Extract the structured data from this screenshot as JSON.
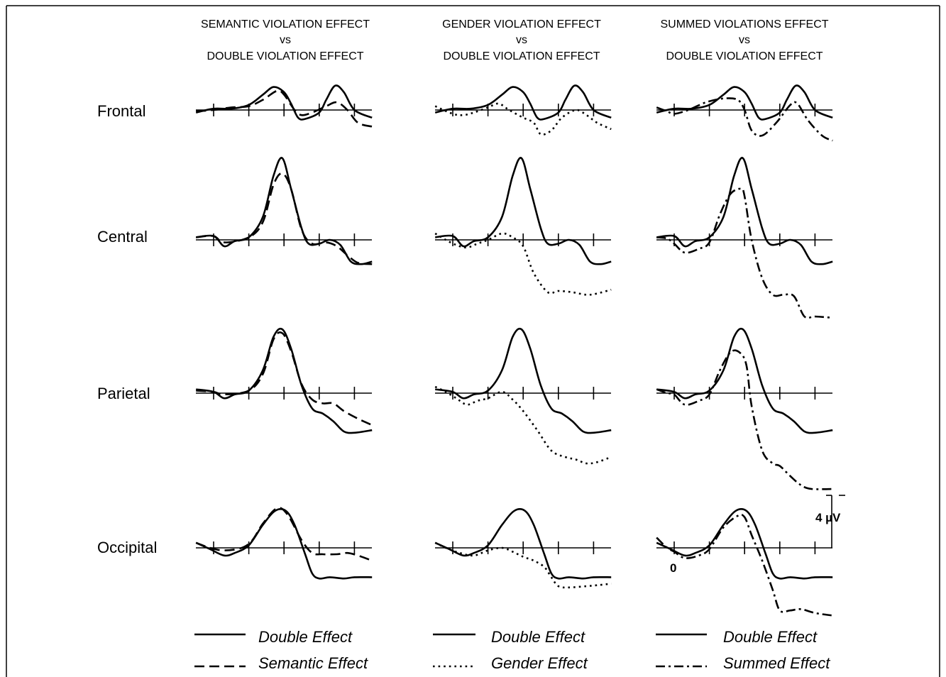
{
  "chart_data": {
    "type": "line",
    "columns": [
      {
        "header": [
          "SEMANTIC VIOLATION EFFECT",
          "vs",
          "DOUBLE VIOLATION EFFECT"
        ],
        "comparison": "semantic",
        "legend": [
          {
            "label": "Double Effect",
            "style": "solid"
          },
          {
            "label": "Semantic Effect",
            "style": "dashed"
          }
        ]
      },
      {
        "header": [
          "GENDER VIOLATION EFFECT",
          "vs",
          "DOUBLE VIOLATION EFFECT"
        ],
        "comparison": "gender",
        "legend": [
          {
            "label": "Double Effect",
            "style": "solid"
          },
          {
            "label": "Gender Effect",
            "style": "dotted"
          }
        ]
      },
      {
        "header": [
          "SUMMED VIOLATIONS EFFECT",
          "vs",
          "DOUBLE VIOLATION EFFECT"
        ],
        "comparison": "summed",
        "legend": [
          {
            "label": "Double Effect",
            "style": "solid"
          },
          {
            "label": "Summed Effect",
            "style": "dashdot"
          }
        ]
      }
    ],
    "rows": [
      "Frontal",
      "Central",
      "Parietal",
      "Occipital"
    ],
    "x_units": "ticks",
    "x_range": [
      -0.5,
      4.5
    ],
    "y_units": "µV (positive up)",
    "scale_bar": {
      "label": "4 µV",
      "value": 4
    },
    "zero_label": "0",
    "series": {
      "Frontal": {
        "double": [
          [
            -0.5,
            -0.2
          ],
          [
            0,
            0.1
          ],
          [
            0.5,
            0.1
          ],
          [
            1,
            0.4
          ],
          [
            1.4,
            1.2
          ],
          [
            1.7,
            1.8
          ],
          [
            2,
            1.4
          ],
          [
            2.2,
            0.5
          ],
          [
            2.4,
            -0.6
          ],
          [
            2.6,
            -0.7
          ],
          [
            3,
            -0.2
          ],
          [
            3.2,
            0.8
          ],
          [
            3.45,
            1.9
          ],
          [
            3.7,
            1.4
          ],
          [
            4,
            0.0
          ],
          [
            4.5,
            -0.6
          ]
        ],
        "semantic": [
          [
            -0.5,
            -0.1
          ],
          [
            0,
            0.0
          ],
          [
            0.5,
            0.2
          ],
          [
            1,
            0.3
          ],
          [
            1.4,
            0.8
          ],
          [
            1.8,
            1.5
          ],
          [
            2,
            1.2
          ],
          [
            2.3,
            0.0
          ],
          [
            2.5,
            -0.4
          ],
          [
            2.8,
            -0.2
          ],
          [
            3.2,
            0.3
          ],
          [
            3.5,
            0.6
          ],
          [
            3.8,
            0.0
          ],
          [
            4.1,
            -1.0
          ],
          [
            4.5,
            -1.3
          ]
        ],
        "gender": [
          [
            -0.5,
            0.3
          ],
          [
            0,
            -0.3
          ],
          [
            0.3,
            -0.4
          ],
          [
            0.6,
            -0.2
          ],
          [
            1,
            0.2
          ],
          [
            1.3,
            0.5
          ],
          [
            1.6,
            0.0
          ],
          [
            2,
            -0.6
          ],
          [
            2.3,
            -1.0
          ],
          [
            2.5,
            -1.9
          ],
          [
            2.8,
            -1.6
          ],
          [
            3.1,
            -0.6
          ],
          [
            3.5,
            0.0
          ],
          [
            3.8,
            -0.4
          ],
          [
            4.1,
            -1.0
          ],
          [
            4.5,
            -1.5
          ]
        ],
        "summed": [
          [
            -0.5,
            0.2
          ],
          [
            -0.2,
            -0.1
          ],
          [
            0,
            -0.3
          ],
          [
            0.4,
            0.0
          ],
          [
            0.9,
            0.6
          ],
          [
            1.4,
            0.9
          ],
          [
            1.8,
            0.8
          ],
          [
            2.0,
            0.0
          ],
          [
            2.2,
            -1.6
          ],
          [
            2.5,
            -2.0
          ],
          [
            2.9,
            -1.0
          ],
          [
            3.3,
            0.4
          ],
          [
            3.5,
            0.5
          ],
          [
            3.8,
            -0.8
          ],
          [
            4.2,
            -2.0
          ],
          [
            4.5,
            -2.4
          ]
        ]
      },
      "Central": {
        "double": [
          [
            -0.5,
            0.2
          ],
          [
            0,
            0.3
          ],
          [
            0.3,
            -0.5
          ],
          [
            0.6,
            -0.1
          ],
          [
            1,
            0.2
          ],
          [
            1.4,
            1.8
          ],
          [
            1.7,
            5.0
          ],
          [
            1.95,
            6.4
          ],
          [
            2.2,
            4.0
          ],
          [
            2.5,
            0.9
          ],
          [
            2.7,
            -0.3
          ],
          [
            3.0,
            -0.3
          ],
          [
            3.3,
            0.0
          ],
          [
            3.6,
            -0.4
          ],
          [
            3.9,
            -1.7
          ],
          [
            4.2,
            -1.9
          ],
          [
            4.5,
            -1.7
          ]
        ],
        "semantic": [
          [
            -0.5,
            0.2
          ],
          [
            0,
            0.3
          ],
          [
            0.3,
            -0.2
          ],
          [
            1,
            0.2
          ],
          [
            1.4,
            1.4
          ],
          [
            1.7,
            4.3
          ],
          [
            1.95,
            5.2
          ],
          [
            2.2,
            4.0
          ],
          [
            2.5,
            0.8
          ],
          [
            2.8,
            -0.3
          ],
          [
            3.2,
            -0.2
          ],
          [
            3.5,
            -0.5
          ],
          [
            3.8,
            -1.2
          ],
          [
            4.1,
            -1.8
          ],
          [
            4.5,
            -1.9
          ]
        ],
        "gender": [
          [
            -0.5,
            0.5
          ],
          [
            -0.2,
            0.0
          ],
          [
            0.1,
            -0.4
          ],
          [
            0.4,
            -0.6
          ],
          [
            0.7,
            -0.3
          ],
          [
            1.0,
            0.0
          ],
          [
            1.4,
            0.5
          ],
          [
            1.7,
            0.2
          ],
          [
            2.0,
            -0.5
          ],
          [
            2.3,
            -2.6
          ],
          [
            2.7,
            -4.1
          ],
          [
            3.0,
            -4.0
          ],
          [
            3.4,
            -4.1
          ],
          [
            3.8,
            -4.3
          ],
          [
            4.1,
            -4.2
          ],
          [
            4.5,
            -3.9
          ]
        ],
        "summed": [
          [
            -0.5,
            0.2
          ],
          [
            -0.2,
            0.1
          ],
          [
            0.0,
            -0.3
          ],
          [
            0.3,
            -1.0
          ],
          [
            0.7,
            -0.7
          ],
          [
            1.0,
            -0.2
          ],
          [
            1.3,
            2.0
          ],
          [
            1.6,
            3.6
          ],
          [
            1.9,
            4.0
          ],
          [
            2.0,
            3.4
          ],
          [
            2.2,
            0.0
          ],
          [
            2.5,
            -3.0
          ],
          [
            2.8,
            -4.3
          ],
          [
            3.1,
            -4.3
          ],
          [
            3.4,
            -4.4
          ],
          [
            3.7,
            -6.0
          ],
          [
            4.0,
            -6.0
          ],
          [
            4.5,
            -6.1
          ]
        ]
      },
      "Parietal": {
        "double": [
          [
            -0.5,
            0.3
          ],
          [
            0,
            0.1
          ],
          [
            0.3,
            -0.4
          ],
          [
            0.6,
            -0.1
          ],
          [
            1,
            0.2
          ],
          [
            1.4,
            1.8
          ],
          [
            1.7,
            4.4
          ],
          [
            1.95,
            5.0
          ],
          [
            2.2,
            3.5
          ],
          [
            2.5,
            0.6
          ],
          [
            2.8,
            -1.2
          ],
          [
            3.1,
            -1.6
          ],
          [
            3.4,
            -2.2
          ],
          [
            3.7,
            -3.0
          ],
          [
            4.0,
            -3.1
          ],
          [
            4.5,
            -2.9
          ]
        ],
        "semantic": [
          [
            -0.5,
            0.2
          ],
          [
            0,
            0.1
          ],
          [
            0.3,
            -0.1
          ],
          [
            1,
            0.2
          ],
          [
            1.4,
            1.5
          ],
          [
            1.7,
            4.2
          ],
          [
            1.95,
            4.7
          ],
          [
            2.2,
            3.3
          ],
          [
            2.5,
            0.7
          ],
          [
            2.8,
            -0.5
          ],
          [
            3.1,
            -0.8
          ],
          [
            3.4,
            -0.8
          ],
          [
            3.7,
            -1.4
          ],
          [
            4.1,
            -2.0
          ],
          [
            4.5,
            -2.5
          ]
        ],
        "gender": [
          [
            -0.5,
            0.5
          ],
          [
            -0.2,
            0.1
          ],
          [
            0.1,
            -0.4
          ],
          [
            0.4,
            -0.9
          ],
          [
            0.7,
            -0.6
          ],
          [
            1.0,
            -0.4
          ],
          [
            1.4,
            0.1
          ],
          [
            1.7,
            -0.5
          ],
          [
            2.0,
            -1.4
          ],
          [
            2.4,
            -2.9
          ],
          [
            2.8,
            -4.5
          ],
          [
            3.2,
            -5.0
          ],
          [
            3.5,
            -5.2
          ],
          [
            3.8,
            -5.5
          ],
          [
            4.1,
            -5.4
          ],
          [
            4.5,
            -5.0
          ]
        ],
        "summed": [
          [
            -0.5,
            0.3
          ],
          [
            -0.2,
            0.0
          ],
          [
            0.0,
            -0.1
          ],
          [
            0.3,
            -0.9
          ],
          [
            0.7,
            -0.6
          ],
          [
            1.0,
            -0.1
          ],
          [
            1.3,
            1.8
          ],
          [
            1.6,
            3.2
          ],
          [
            1.85,
            3.2
          ],
          [
            2.05,
            2.2
          ],
          [
            2.2,
            -1.0
          ],
          [
            2.5,
            -4.5
          ],
          [
            2.8,
            -5.5
          ],
          [
            3.0,
            -5.7
          ],
          [
            3.3,
            -6.5
          ],
          [
            3.6,
            -7.2
          ],
          [
            3.9,
            -7.5
          ],
          [
            4.5,
            -7.5
          ]
        ]
      },
      "Occipital": {
        "double": [
          [
            -0.5,
            0.4
          ],
          [
            -0.1,
            -0.1
          ],
          [
            0.3,
            -0.6
          ],
          [
            0.6,
            -0.4
          ],
          [
            1,
            0.2
          ],
          [
            1.4,
            1.8
          ],
          [
            1.75,
            2.9
          ],
          [
            2.05,
            2.9
          ],
          [
            2.3,
            1.8
          ],
          [
            2.6,
            -0.5
          ],
          [
            2.8,
            -2.0
          ],
          [
            3.0,
            -2.4
          ],
          [
            3.3,
            -2.3
          ],
          [
            3.7,
            -2.4
          ],
          [
            4.0,
            -2.3
          ],
          [
            4.5,
            -2.3
          ]
        ],
        "semantic": [
          [
            -0.5,
            0.4
          ],
          [
            -0.1,
            0.0
          ],
          [
            0.3,
            -0.2
          ],
          [
            0.8,
            0.0
          ],
          [
            1.1,
            0.6
          ],
          [
            1.4,
            1.9
          ],
          [
            1.8,
            3.1
          ],
          [
            2.1,
            2.6
          ],
          [
            2.5,
            0.6
          ],
          [
            2.8,
            -0.4
          ],
          [
            3.1,
            -0.5
          ],
          [
            3.5,
            -0.5
          ],
          [
            3.8,
            -0.4
          ],
          [
            4.1,
            -0.6
          ],
          [
            4.5,
            -1.0
          ]
        ],
        "gender": [
          [
            -0.5,
            0.4
          ],
          [
            -0.2,
            0.0
          ],
          [
            0.2,
            -0.4
          ],
          [
            0.6,
            -0.6
          ],
          [
            1.0,
            -0.2
          ],
          [
            1.4,
            0.0
          ],
          [
            1.7,
            -0.3
          ],
          [
            2.0,
            -0.7
          ],
          [
            2.3,
            -1.0
          ],
          [
            2.6,
            -1.5
          ],
          [
            2.8,
            -2.3
          ],
          [
            3.0,
            -3.0
          ],
          [
            3.3,
            -3.1
          ],
          [
            3.8,
            -3.0
          ],
          [
            4.2,
            -2.9
          ],
          [
            4.5,
            -2.8
          ]
        ],
        "summed": [
          [
            -0.5,
            0.8
          ],
          [
            -0.2,
            0.0
          ],
          [
            0.0,
            -0.3
          ],
          [
            0.3,
            -0.8
          ],
          [
            0.7,
            -0.6
          ],
          [
            1.0,
            -0.1
          ],
          [
            1.4,
            1.6
          ],
          [
            1.8,
            2.5
          ],
          [
            2.0,
            2.4
          ],
          [
            2.2,
            1.0
          ],
          [
            2.5,
            -1.0
          ],
          [
            2.8,
            -3.3
          ],
          [
            3.0,
            -4.9
          ],
          [
            3.3,
            -4.9
          ],
          [
            3.6,
            -4.8
          ],
          [
            4.0,
            -5.1
          ],
          [
            4.5,
            -5.3
          ]
        ]
      }
    }
  }
}
